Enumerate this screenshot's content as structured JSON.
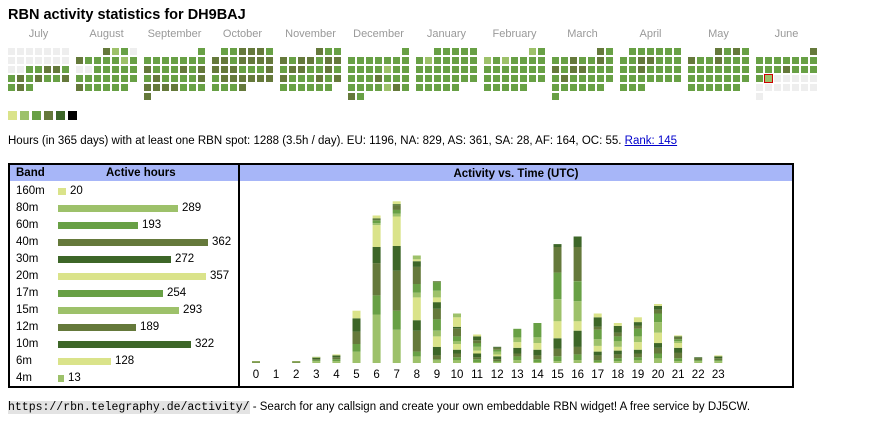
{
  "title": "RBN activity statistics for DH9BAJ",
  "calendar": {
    "months": [
      "July",
      "August",
      "September",
      "October",
      "November",
      "December",
      "January",
      "February",
      "March",
      "April",
      "May",
      "June"
    ],
    "legend_colors": [
      "#dae38a",
      "#9dc16a",
      "#68a045",
      "#65793b",
      "#3d6628",
      "#000000"
    ],
    "empty_color": "#eeeeee",
    "today_border_color": "#cc0000",
    "levels_legend": "0=empty,1..6=legend_colors index",
    "grid": [
      [
        [
          0,
          0,
          0,
          0,
          0,
          0,
          0
        ],
        [
          0,
          0,
          0,
          0,
          0,
          0,
          0
        ],
        [
          0,
          0,
          3,
          3,
          4,
          4,
          3
        ],
        [
          3,
          4,
          3,
          4,
          3,
          3,
          4
        ],
        [
          3,
          4,
          3,
          -1,
          -1,
          -1,
          -1
        ]
      ],
      [
        [
          -1,
          -1,
          -1,
          4,
          2,
          3,
          0
        ],
        [
          4,
          3,
          3,
          3,
          3,
          2,
          3
        ],
        [
          0,
          0,
          3,
          3,
          3,
          3,
          3
        ],
        [
          3,
          3,
          3,
          3,
          3,
          3,
          3
        ],
        [
          4,
          3,
          3,
          3,
          3,
          3,
          -1
        ]
      ],
      [
        [
          -1,
          -1,
          -1,
          -1,
          -1,
          -1,
          3
        ],
        [
          3,
          3,
          3,
          3,
          3,
          3,
          3
        ],
        [
          4,
          3,
          3,
          3,
          4,
          3,
          4
        ],
        [
          3,
          4,
          3,
          3,
          3,
          3,
          4
        ],
        [
          4,
          4,
          4,
          4,
          3,
          3,
          3
        ],
        [
          4,
          -1,
          -1,
          -1,
          -1,
          -1,
          -1
        ]
      ],
      [
        [
          -1,
          3,
          3,
          4,
          4,
          4,
          3
        ],
        [
          4,
          4,
          3,
          4,
          4,
          4,
          4
        ],
        [
          4,
          4,
          4,
          3,
          3,
          3,
          4
        ],
        [
          3,
          4,
          4,
          4,
          4,
          4,
          4
        ],
        [
          3,
          3,
          3,
          4,
          -1,
          -1,
          -1
        ]
      ],
      [
        [
          -1,
          -1,
          -1,
          -1,
          4,
          3,
          3
        ],
        [
          4,
          3,
          4,
          4,
          3,
          4,
          4
        ],
        [
          3,
          4,
          4,
          3,
          3,
          4,
          3
        ],
        [
          4,
          3,
          3,
          3,
          4,
          3,
          4
        ],
        [
          3,
          3,
          3,
          3,
          3,
          3,
          -1
        ]
      ],
      [
        [
          -1,
          -1,
          -1,
          -1,
          -1,
          -1,
          3
        ],
        [
          3,
          3,
          3,
          3,
          3,
          3,
          3
        ],
        [
          3,
          3,
          3,
          3,
          2,
          3,
          3
        ],
        [
          3,
          3,
          3,
          4,
          3,
          3,
          3
        ],
        [
          3,
          3,
          3,
          3,
          2,
          4,
          3
        ],
        [
          4,
          3,
          -1,
          -1,
          -1,
          -1,
          -1
        ]
      ],
      [
        [
          -1,
          -1,
          3,
          3,
          3,
          3,
          3
        ],
        [
          3,
          2,
          3,
          3,
          3,
          3,
          3
        ],
        [
          3,
          3,
          3,
          3,
          3,
          3,
          3
        ],
        [
          3,
          3,
          3,
          3,
          3,
          3,
          3
        ],
        [
          3,
          3,
          3,
          3,
          3,
          -1,
          -1
        ]
      ],
      [
        [
          -1,
          -1,
          -1,
          -1,
          -1,
          2,
          3
        ],
        [
          2,
          3,
          2,
          3,
          3,
          3,
          3
        ],
        [
          3,
          3,
          3,
          3,
          3,
          3,
          3
        ],
        [
          3,
          3,
          3,
          3,
          3,
          3,
          3
        ],
        [
          3,
          3,
          3,
          3,
          3,
          -1,
          -1
        ]
      ],
      [
        [
          -1,
          -1,
          -1,
          -1,
          -1,
          4,
          3
        ],
        [
          3,
          3,
          4,
          3,
          3,
          4,
          3
        ],
        [
          4,
          3,
          4,
          4,
          3,
          3,
          3
        ],
        [
          3,
          4,
          3,
          3,
          3,
          3,
          3
        ],
        [
          3,
          3,
          3,
          3,
          3,
          3,
          -1
        ],
        [
          3,
          -1,
          -1,
          -1,
          -1,
          -1,
          -1
        ]
      ],
      [
        [
          -1,
          3,
          3,
          3,
          3,
          3,
          3
        ],
        [
          3,
          3,
          4,
          4,
          3,
          3,
          3
        ],
        [
          3,
          3,
          4,
          3,
          3,
          3,
          3
        ],
        [
          3,
          3,
          3,
          3,
          3,
          3,
          3
        ],
        [
          3,
          3,
          3,
          -1,
          -1,
          -1,
          -1
        ]
      ],
      [
        [
          -1,
          -1,
          -1,
          4,
          3,
          4,
          3
        ],
        [
          4,
          3,
          3,
          4,
          3,
          3,
          3
        ],
        [
          3,
          3,
          3,
          3,
          3,
          3,
          3
        ],
        [
          3,
          3,
          3,
          3,
          3,
          3,
          3
        ],
        [
          3,
          3,
          3,
          3,
          3,
          3,
          -1
        ]
      ],
      [
        [
          -1,
          -1,
          -1,
          -1,
          -1,
          -1,
          4
        ],
        [
          3,
          3,
          3,
          3,
          3,
          3,
          3
        ],
        [
          3,
          3,
          3,
          4,
          3,
          3,
          3
        ],
        [
          3,
          2,
          0,
          0,
          0,
          0,
          0
        ],
        [
          0,
          0,
          0,
          0,
          0,
          0,
          0
        ],
        [
          0,
          -1,
          -1,
          -1,
          -1,
          -1,
          -1
        ]
      ]
    ],
    "today": {
      "month_index": 11,
      "row": 3,
      "col": 1
    }
  },
  "summary": {
    "text": "Hours (in 365 days) with at least one RBN spot: 1288 (3.5h / day). EU: 1196, NA: 829, AS: 361, SA: 28, AF: 164, OC: 55.",
    "rank_link": "Rank: 145"
  },
  "bands_table": {
    "col_band": "Band",
    "col_hours": "Active hours",
    "max_hours": 362,
    "rows": [
      {
        "band": "160m",
        "hours": 20,
        "color": "#dae38a"
      },
      {
        "band": "80m",
        "hours": 289,
        "color": "#9dc16a"
      },
      {
        "band": "60m",
        "hours": 193,
        "color": "#68a045"
      },
      {
        "band": "40m",
        "hours": 362,
        "color": "#65793b"
      },
      {
        "band": "30m",
        "hours": 272,
        "color": "#3d6628"
      },
      {
        "band": "20m",
        "hours": 357,
        "color": "#dae38a"
      },
      {
        "band": "17m",
        "hours": 254,
        "color": "#68a045"
      },
      {
        "band": "15m",
        "hours": 293,
        "color": "#9dc16a"
      },
      {
        "band": "12m",
        "hours": 189,
        "color": "#65793b"
      },
      {
        "band": "10m",
        "hours": 322,
        "color": "#3d6628"
      },
      {
        "band": "6m",
        "hours": 128,
        "color": "#dae38a"
      },
      {
        "band": "4m",
        "hours": 13,
        "color": "#9dc16a"
      }
    ]
  },
  "chart_data": {
    "type": "bar",
    "title": "Activity vs. Time (UTC)",
    "xlabel": "",
    "ylabel": "",
    "stacked": true,
    "categories": [
      "0",
      "1",
      "2",
      "3",
      "4",
      "5",
      "6",
      "7",
      "8",
      "9",
      "10",
      "11",
      "12",
      "13",
      "14",
      "15",
      "16",
      "17",
      "18",
      "19",
      "20",
      "21",
      "22",
      "23"
    ],
    "segment_colors": [
      "#9dc16a",
      "#68a045",
      "#65793b",
      "#3d6628",
      "#dae38a",
      "#9dc16a",
      "#68a045",
      "#65793b",
      "#3d6628",
      "#dae38a"
    ],
    "series_stacks": [
      [
        1,
        0,
        0,
        1,
        0
      ],
      [],
      [
        1,
        0,
        0,
        1,
        0
      ],
      [
        2,
        1,
        1,
        2,
        0,
        0.5
      ],
      [
        2,
        2,
        2,
        2,
        1
      ],
      [
        12,
        8,
        13,
        14,
        8
      ],
      [
        51,
        20,
        34,
        17,
        23,
        2,
        3,
        1,
        1,
        3
      ],
      [
        35,
        20,
        42,
        26,
        31,
        3,
        4,
        5,
        1,
        3
      ],
      [
        7,
        5,
        22,
        11,
        24,
        5,
        9,
        18,
        6,
        2,
        4
      ],
      [
        3,
        1,
        4,
        9,
        11,
        6,
        12,
        11,
        7,
        5,
        7,
        9,
        1
      ],
      [
        3,
        3,
        4,
        4,
        6,
        3,
        5,
        8,
        2,
        10,
        4
      ],
      [
        1,
        3,
        2,
        4,
        3,
        4,
        4,
        3,
        4,
        2
      ],
      [
        1,
        1,
        2,
        3,
        2,
        3,
        2,
        2,
        1
      ],
      [
        3,
        4,
        3,
        6,
        6,
        5,
        9
      ],
      [
        1,
        3,
        4,
        6,
        7,
        6,
        15
      ],
      [
        2,
        5,
        8,
        11,
        18,
        23,
        28,
        27,
        3
      ],
      [
        3,
        6,
        8,
        17,
        10,
        21,
        21,
        36,
        11
      ],
      [
        1,
        2,
        5,
        4,
        6,
        7,
        10,
        3,
        10,
        4
      ],
      [
        2,
        3,
        4,
        4,
        4,
        6,
        5,
        4,
        7,
        3
      ],
      [
        3,
        3,
        4,
        4,
        8,
        6,
        8,
        3,
        4,
        5
      ],
      [
        5,
        5,
        6,
        5,
        11,
        11,
        9,
        4,
        4,
        2
      ],
      [
        2,
        3,
        6,
        5,
        5,
        2,
        2,
        2,
        1,
        1
      ],
      [
        2,
        1,
        2,
        1
      ],
      [
        2,
        1,
        2,
        2,
        1
      ]
    ],
    "ylim": [
      0,
      185
    ],
    "grid": false,
    "legend": "none"
  },
  "footer": {
    "url": "https://rbn.telegraphy.de/activity/",
    "text": " - Search for any callsign and create your own embeddable RBN widget! A free service by DJ5CW."
  }
}
